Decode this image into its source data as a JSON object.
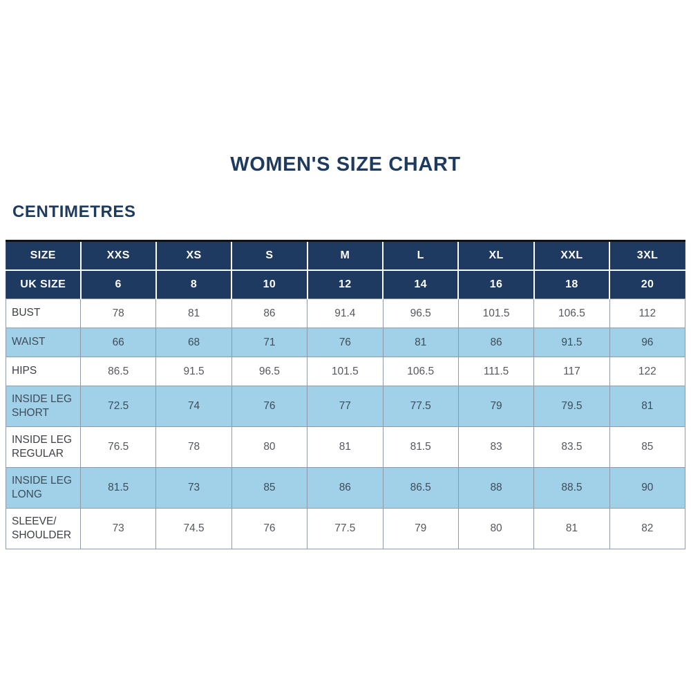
{
  "colors": {
    "navy": "#1f3a60",
    "title_navy": "#1e3a5f",
    "light_blue": "#a0d1e9",
    "header_text": "#ffffff",
    "body_text": "#54575e",
    "grid_line": "#8f99a7"
  },
  "chart_data": {
    "type": "table",
    "title": "WOMEN'S SIZE CHART",
    "unit": "CENTIMETRES",
    "size_row": {
      "label": "SIZE",
      "values": [
        "XXS",
        "XS",
        "S",
        "M",
        "L",
        "XL",
        "XXL",
        "3XL"
      ]
    },
    "uk_row": {
      "label": "UK SIZE",
      "values": [
        6,
        8,
        10,
        12,
        14,
        16,
        18,
        20
      ]
    },
    "rows": [
      {
        "label": "BUST",
        "values": [
          78,
          81,
          86,
          91.4,
          96.5,
          101.5,
          106.5,
          112
        ]
      },
      {
        "label": "WAIST",
        "values": [
          66,
          68,
          71,
          76,
          81,
          86,
          91.5,
          96
        ]
      },
      {
        "label": "HIPS",
        "values": [
          86.5,
          91.5,
          96.5,
          101.5,
          106.5,
          111.5,
          117,
          122
        ]
      },
      {
        "label": "INSIDE LEG SHORT",
        "values": [
          72.5,
          74,
          76,
          77,
          77.5,
          79,
          79.5,
          81
        ]
      },
      {
        "label": "INSIDE LEG REGULAR",
        "values": [
          76.5,
          78,
          80,
          81,
          81.5,
          83,
          83.5,
          85
        ]
      },
      {
        "label": "INSIDE LEG LONG",
        "values": [
          81.5,
          73,
          85,
          86,
          86.5,
          88,
          88.5,
          90
        ]
      },
      {
        "label": "SLEEVE/ SHOULDER",
        "values": [
          73,
          74.5,
          76,
          77.5,
          79,
          80,
          81,
          82
        ]
      }
    ]
  }
}
